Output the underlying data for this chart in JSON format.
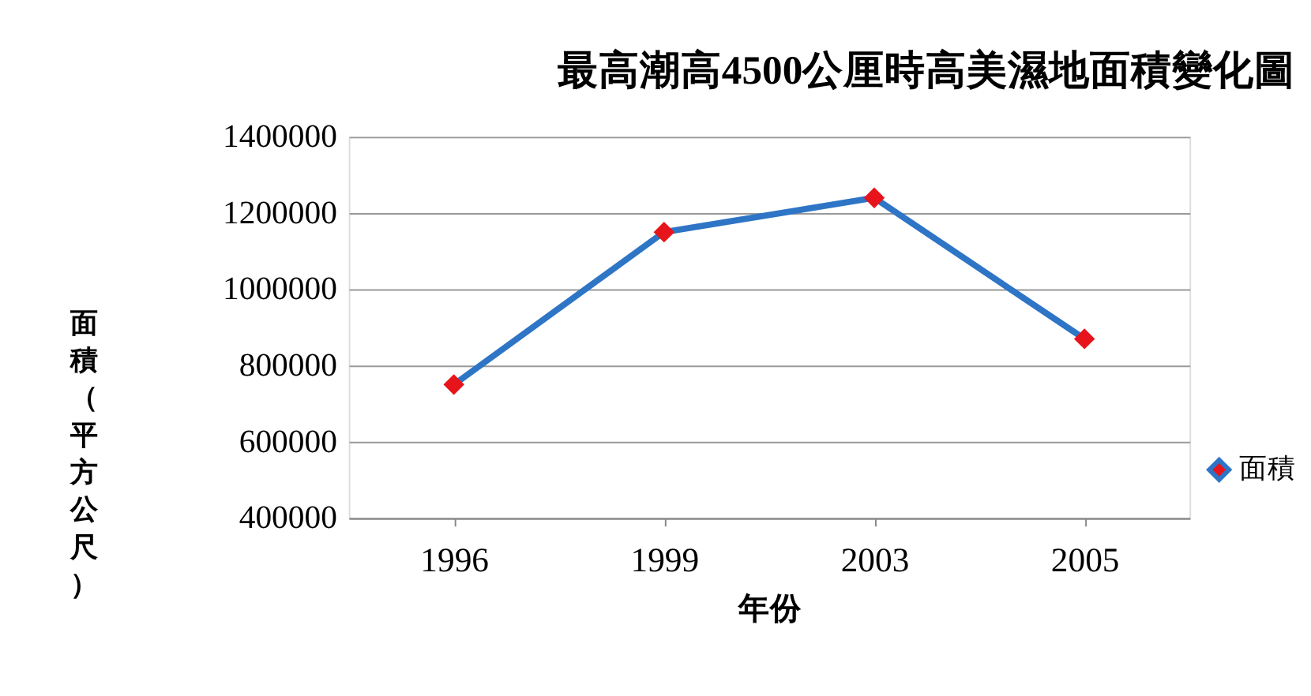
{
  "chart_data": {
    "type": "line",
    "title": "最高潮高4500公厘時高美濕地面積變化圖",
    "xlabel": "年份",
    "ylabel": "面積（平方公尺）",
    "categories": [
      "1996",
      "1999",
      "2003",
      "2005"
    ],
    "series": [
      {
        "name": "面積",
        "color": "#2e75c6",
        "colors": [
          "#e8141b",
          "#e8141b",
          "#e8141b",
          "#e8141b"
        ],
        "values": [
          750000,
          1150000,
          1240000,
          870000
        ]
      }
    ],
    "ylim": [
      400000,
      1400000
    ],
    "yticks": [
      400000,
      600000,
      800000,
      1000000,
      1200000,
      1400000
    ],
    "grid": "y",
    "legend": "right",
    "marker": "diamond",
    "line_style": "solid"
  }
}
